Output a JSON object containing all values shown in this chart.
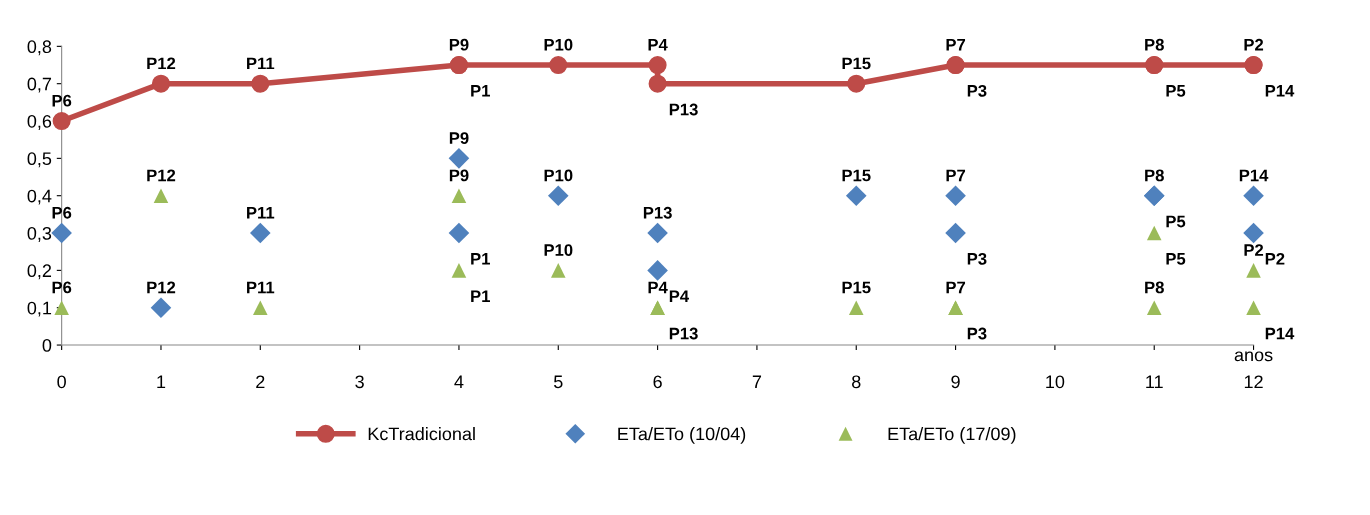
{
  "chart_data": {
    "type": "line",
    "xlabel": "anos",
    "xlim": [
      0,
      12
    ],
    "xticks": [
      0,
      1,
      2,
      3,
      4,
      5,
      6,
      7,
      8,
      9,
      10,
      11,
      12
    ],
    "ylim": [
      0,
      0.8
    ],
    "yticks": [
      0,
      {
        "value": 0.1,
        "label": "0,1"
      },
      {
        "value": 0.2,
        "label": "0,2"
      },
      {
        "value": 0.3,
        "label": "0,3"
      },
      {
        "value": 0.4,
        "label": "0,4"
      },
      {
        "value": 0.5,
        "label": "0,5"
      },
      {
        "value": 0.6,
        "label": "0,6"
      },
      {
        "value": 0.7,
        "label": "0,7"
      },
      {
        "value": 0.8,
        "label": "0,8"
      }
    ],
    "grid": false,
    "legend": "bottom",
    "series": [
      {
        "name": "KcTradicional",
        "color": "#be4b48",
        "marker": "circle",
        "x": [
          0,
          1,
          2,
          4,
          4,
          5,
          6,
          6,
          8,
          9,
          9,
          11,
          11,
          12,
          12
        ],
        "values": [
          0.6,
          0.7,
          0.7,
          0.75,
          0.75,
          0.75,
          0.75,
          0.7,
          0.7,
          0.75,
          0.75,
          0.75,
          0.75,
          0.75,
          0.75
        ],
        "value_labels": [
          "P6",
          "P12",
          "P11",
          "P9",
          "P1",
          "P10",
          "P4",
          "P13",
          "P15",
          "P7",
          "P3",
          "P8",
          "P5",
          "P2",
          "P14"
        ]
      },
      {
        "name": "ETa/ETo (10/04)",
        "type": "scatter",
        "color": "#4f81bd",
        "marker": "diamond",
        "x": [
          0,
          1,
          2,
          4,
          4,
          5,
          6,
          6,
          8,
          9,
          9,
          11,
          11,
          12,
          12
        ],
        "values": [
          0.3,
          0.1,
          0.3,
          0.5,
          0.3,
          0.4,
          0.3,
          0.2,
          0.4,
          0.4,
          0.3,
          0.4,
          0.4,
          0.4,
          0.3
        ],
        "value_labels": [
          "P6",
          "P12",
          "P11",
          "P9",
          "P1",
          "P10",
          "P13",
          "P4",
          "P15",
          "P7",
          "P3",
          "P8",
          "P5",
          "P14",
          "P2"
        ]
      },
      {
        "name": "ETa/ETo (17/09)",
        "type": "scatter",
        "color": "#9bbb59",
        "marker": "triangle",
        "x": [
          0,
          1,
          2,
          4,
          4,
          5,
          6,
          6,
          8,
          9,
          9,
          11,
          11,
          12,
          12
        ],
        "values": [
          0.1,
          0.4,
          0.1,
          0.4,
          0.2,
          0.2,
          0.1,
          0.1,
          0.1,
          0.1,
          0.1,
          0.1,
          0.3,
          0.2,
          0.1
        ],
        "value_labels": [
          "P6",
          "P12",
          "P11",
          "P9",
          "P1",
          "P10",
          "P4",
          "P13",
          "P15",
          "P7",
          "P3",
          "P8",
          "P5",
          "P2",
          "P14"
        ]
      }
    ]
  }
}
